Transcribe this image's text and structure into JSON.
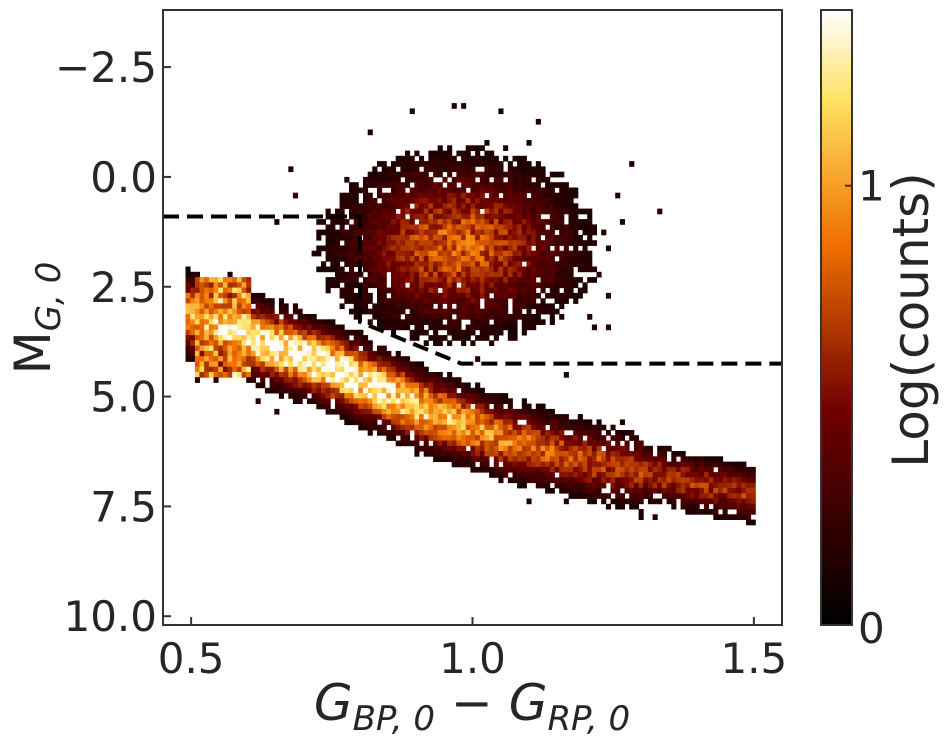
{
  "chart_data": {
    "type": "heatmap",
    "title": "",
    "xlabel_parts": {
      "g1": "G",
      "s1": "BP, 0",
      "minus": " − ",
      "g2": "G",
      "s2": "RP, 0"
    },
    "ylabel_parts": {
      "m": "M",
      "s": "G, 0"
    },
    "xlim": [
      0.45,
      1.55
    ],
    "ylim": [
      10.2,
      -3.8
    ],
    "x_ticks": [
      0.5,
      1.0,
      1.5
    ],
    "x_tick_labels": [
      "0.5",
      "1.0",
      "1.5"
    ],
    "y_ticks": [
      -2.5,
      0.0,
      2.5,
      5.0,
      7.5,
      10.0
    ],
    "y_tick_labels": [
      "−2.5",
      "0.0",
      "2.5",
      "5.0",
      "7.5",
      "10.0"
    ],
    "colorbar": {
      "label": "Log(counts)",
      "range": [
        0,
        1.4
      ],
      "ticks": [
        0,
        1
      ],
      "tick_labels": [
        "0",
        "1"
      ],
      "colormap": "afmhot"
    },
    "selection_boundary": {
      "style": "dashed",
      "color": "#000000",
      "points": [
        [
          0.45,
          0.9
        ],
        [
          0.8,
          0.9
        ],
        [
          0.8,
          3.3
        ],
        [
          0.98,
          4.25
        ],
        [
          1.55,
          4.25
        ]
      ]
    },
    "density_components": [
      {
        "name": "main-sequence",
        "points": [
          [
            0.6,
            3.6
          ],
          [
            0.75,
            4.3
          ],
          [
            0.9,
            5.2
          ],
          [
            1.05,
            5.9
          ],
          [
            1.2,
            6.4
          ],
          [
            1.35,
            6.8
          ],
          [
            1.5,
            7.2
          ]
        ],
        "width_mag": 0.75,
        "peak_log_counts": 1.4
      },
      {
        "name": "turnoff-blue-edge",
        "x_range": [
          0.5,
          0.6
        ],
        "y_range": [
          2.2,
          4.5
        ],
        "peak_log_counts": 1.1
      },
      {
        "name": "subgiant-giant-branch",
        "center": [
          0.97,
          1.5
        ],
        "x_spread": 0.18,
        "y_spread": 1.6,
        "peak_log_counts": 0.8
      }
    ]
  }
}
